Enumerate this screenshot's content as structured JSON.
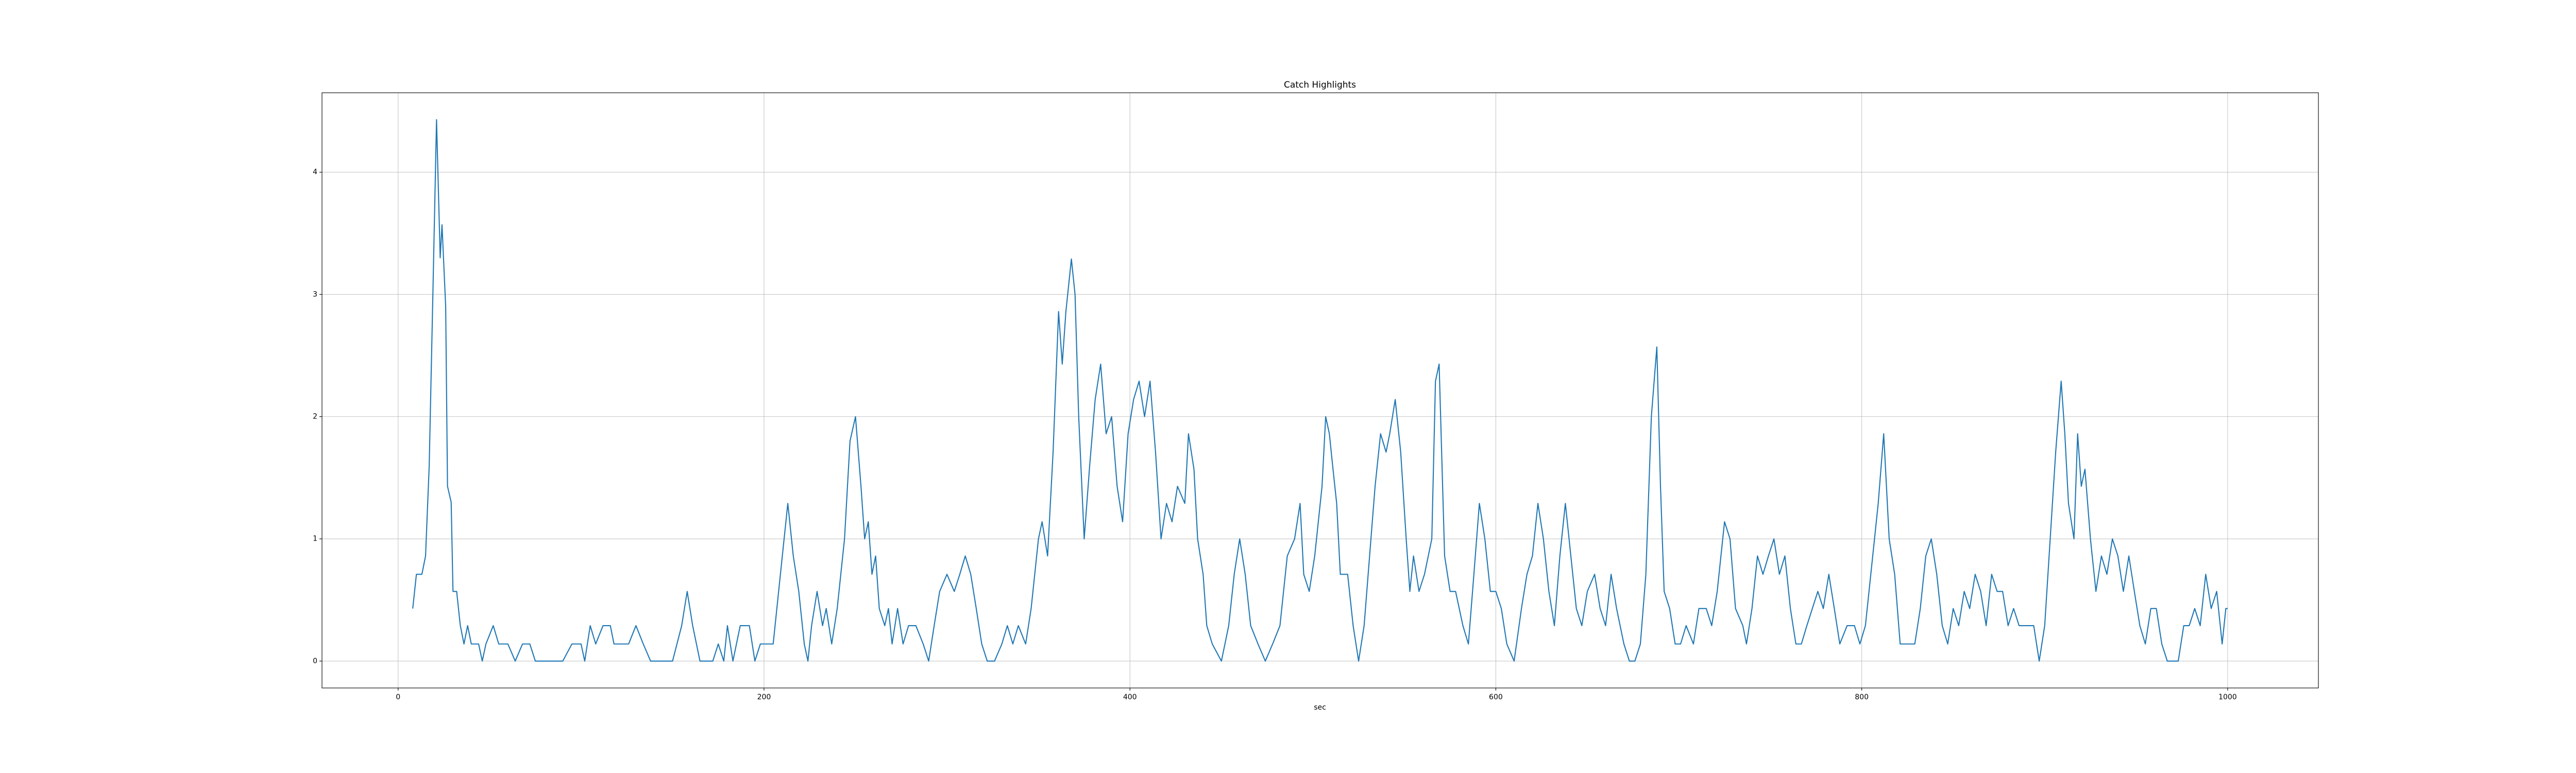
{
  "chart_data": {
    "type": "line",
    "title": "Catch Highlights",
    "x_label": "sec",
    "x": [
      8,
      10,
      13,
      15,
      17,
      19,
      21,
      23,
      24,
      26,
      27,
      29,
      30,
      32,
      34,
      36,
      38,
      40,
      44,
      46,
      48,
      52,
      55,
      60,
      64,
      68,
      72,
      75,
      80,
      90,
      95,
      100,
      102,
      105,
      108,
      112,
      116,
      118,
      122,
      126,
      130,
      134,
      138,
      150,
      155,
      158,
      161,
      165,
      172,
      175,
      178,
      180,
      183,
      187,
      192,
      195,
      198,
      205,
      210,
      213,
      216,
      219,
      222,
      224,
      226,
      229,
      232,
      234,
      237,
      240,
      244,
      247,
      250,
      253,
      255,
      257,
      259,
      261,
      263,
      266,
      268,
      270,
      273,
      276,
      279,
      283,
      287,
      290,
      293,
      296,
      300,
      304,
      307,
      310,
      313,
      316,
      319,
      322,
      326,
      330,
      333,
      336,
      339,
      343,
      346,
      350,
      352,
      355,
      358,
      361,
      363,
      365,
      368,
      370,
      372,
      375,
      378,
      381,
      384,
      387,
      390,
      393,
      396,
      399,
      402,
      405,
      408,
      411,
      414,
      417,
      420,
      423,
      426,
      430,
      432,
      435,
      437,
      440,
      442,
      445,
      450,
      454,
      457,
      460,
      463,
      466,
      470,
      474,
      478,
      482,
      486,
      490,
      493,
      495,
      498,
      501,
      505,
      507,
      509,
      511,
      513,
      515,
      519,
      522,
      525,
      528,
      531,
      534,
      537,
      540,
      542,
      545,
      548,
      551,
      553,
      555,
      558,
      561,
      565,
      567,
      569,
      572,
      575,
      578,
      582,
      585,
      588,
      591,
      594,
      597,
      600,
      603,
      606,
      610,
      614,
      617,
      620,
      623,
      626,
      629,
      632,
      635,
      638,
      641,
      644,
      647,
      650,
      654,
      657,
      660,
      663,
      666,
      670,
      673,
      676,
      679,
      682,
      685,
      688,
      690,
      692,
      695,
      698,
      701,
      704,
      708,
      711,
      715,
      718,
      721,
      725,
      728,
      731,
      735,
      737,
      740,
      743,
      746,
      749,
      752,
      755,
      758,
      761,
      764,
      767,
      770,
      773,
      776,
      779,
      782,
      785,
      788,
      792,
      796,
      799,
      802,
      806,
      809,
      812,
      815,
      818,
      821,
      825,
      829,
      832,
      835,
      838,
      841,
      844,
      847,
      850,
      853,
      856,
      859,
      862,
      865,
      868,
      871,
      874,
      877,
      880,
      883,
      886,
      890,
      894,
      897,
      900,
      903,
      906,
      909,
      911,
      913,
      916,
      918,
      920,
      922,
      925,
      928,
      931,
      934,
      937,
      940,
      943,
      946,
      949,
      952,
      955,
      958,
      961,
      964,
      967,
      970,
      973,
      976,
      979,
      982,
      985,
      988,
      991,
      994,
      997,
      999,
      1000
    ],
    "values": [
      0.43,
      0.71,
      0.71,
      0.86,
      1.6,
      3.0,
      4.43,
      3.3,
      3.57,
      2.9,
      1.43,
      1.3,
      0.57,
      0.57,
      0.29,
      0.14,
      0.29,
      0.14,
      0.14,
      0,
      0.14,
      0.29,
      0.14,
      0.14,
      0,
      0.14,
      0.14,
      0,
      0,
      0,
      0.14,
      0.14,
      0,
      0.29,
      0.14,
      0.29,
      0.29,
      0.14,
      0.14,
      0.14,
      0.29,
      0.14,
      0,
      0,
      0.29,
      0.57,
      0.29,
      0,
      0,
      0.14,
      0,
      0.29,
      0,
      0.29,
      0.29,
      0,
      0.14,
      0.14,
      0.86,
      1.29,
      0.86,
      0.57,
      0.14,
      0,
      0.29,
      0.57,
      0.29,
      0.43,
      0.14,
      0.43,
      1.0,
      1.8,
      2.0,
      1.43,
      1.0,
      1.14,
      0.71,
      0.86,
      0.43,
      0.29,
      0.43,
      0.14,
      0.43,
      0.14,
      0.29,
      0.29,
      0.14,
      0,
      0.29,
      0.57,
      0.71,
      0.57,
      0.71,
      0.86,
      0.71,
      0.43,
      0.14,
      0,
      0,
      0.14,
      0.29,
      0.14,
      0.29,
      0.14,
      0.43,
      1.0,
      1.14,
      0.86,
      1.71,
      2.86,
      2.43,
      2.86,
      3.29,
      3.0,
      2.0,
      1.0,
      1.6,
      2.14,
      2.43,
      1.86,
      2.0,
      1.43,
      1.14,
      1.86,
      2.14,
      2.29,
      2.0,
      2.29,
      1.71,
      1.0,
      1.29,
      1.14,
      1.43,
      1.29,
      1.86,
      1.57,
      1.0,
      0.71,
      0.29,
      0.14,
      0,
      0.29,
      0.71,
      1.0,
      0.71,
      0.29,
      0.14,
      0,
      0.14,
      0.29,
      0.86,
      1.0,
      1.29,
      0.71,
      0.57,
      0.86,
      1.43,
      2.0,
      1.86,
      1.57,
      1.29,
      0.71,
      0.71,
      0.29,
      0,
      0.29,
      0.86,
      1.43,
      1.86,
      1.71,
      1.86,
      2.14,
      1.71,
      1.0,
      0.57,
      0.86,
      0.57,
      0.71,
      1.0,
      2.29,
      2.43,
      0.86,
      0.57,
      0.57,
      0.29,
      0.14,
      0.71,
      1.29,
      1.0,
      0.57,
      0.57,
      0.43,
      0.14,
      0,
      0.43,
      0.71,
      0.86,
      1.29,
      1.0,
      0.57,
      0.29,
      0.86,
      1.29,
      0.86,
      0.43,
      0.29,
      0.57,
      0.71,
      0.43,
      0.29,
      0.71,
      0.43,
      0.14,
      0,
      0,
      0.14,
      0.71,
      2.0,
      2.57,
      1.43,
      0.57,
      0.43,
      0.14,
      0.14,
      0.29,
      0.14,
      0.43,
      0.43,
      0.29,
      0.57,
      1.14,
      1.0,
      0.43,
      0.29,
      0.14,
      0.43,
      0.86,
      0.71,
      0.86,
      1.0,
      0.71,
      0.86,
      0.43,
      0.14,
      0.14,
      0.29,
      0.43,
      0.57,
      0.43,
      0.71,
      0.43,
      0.14,
      0.29,
      0.29,
      0.14,
      0.29,
      0.86,
      1.29,
      1.86,
      1.0,
      0.71,
      0.14,
      0.14,
      0.14,
      0.43,
      0.86,
      1.0,
      0.71,
      0.29,
      0.14,
      0.43,
      0.29,
      0.57,
      0.43,
      0.71,
      0.57,
      0.29,
      0.71,
      0.57,
      0.57,
      0.29,
      0.43,
      0.29,
      0.29,
      0.29,
      0,
      0.29,
      1.0,
      1.71,
      2.29,
      1.86,
      1.29,
      1.0,
      1.86,
      1.43,
      1.57,
      1.0,
      0.57,
      0.86,
      0.71,
      1.0,
      0.86,
      0.57,
      0.86,
      0.57,
      0.29,
      0.14,
      0.43,
      0.43,
      0.14,
      0,
      0,
      0,
      0.29,
      0.29,
      0.43,
      0.29,
      0.71,
      0.43,
      0.57,
      0.14,
      0.43,
      0.43
    ],
    "color": "#1f77b4",
    "xlim": [
      -41.6,
      1049.6
    ],
    "xticks": [
      0,
      200,
      400,
      600,
      800,
      1000
    ],
    "ylim": [
      -0.22,
      4.65
    ],
    "yticks": [
      0,
      1,
      2,
      3,
      4
    ],
    "grid": true
  }
}
